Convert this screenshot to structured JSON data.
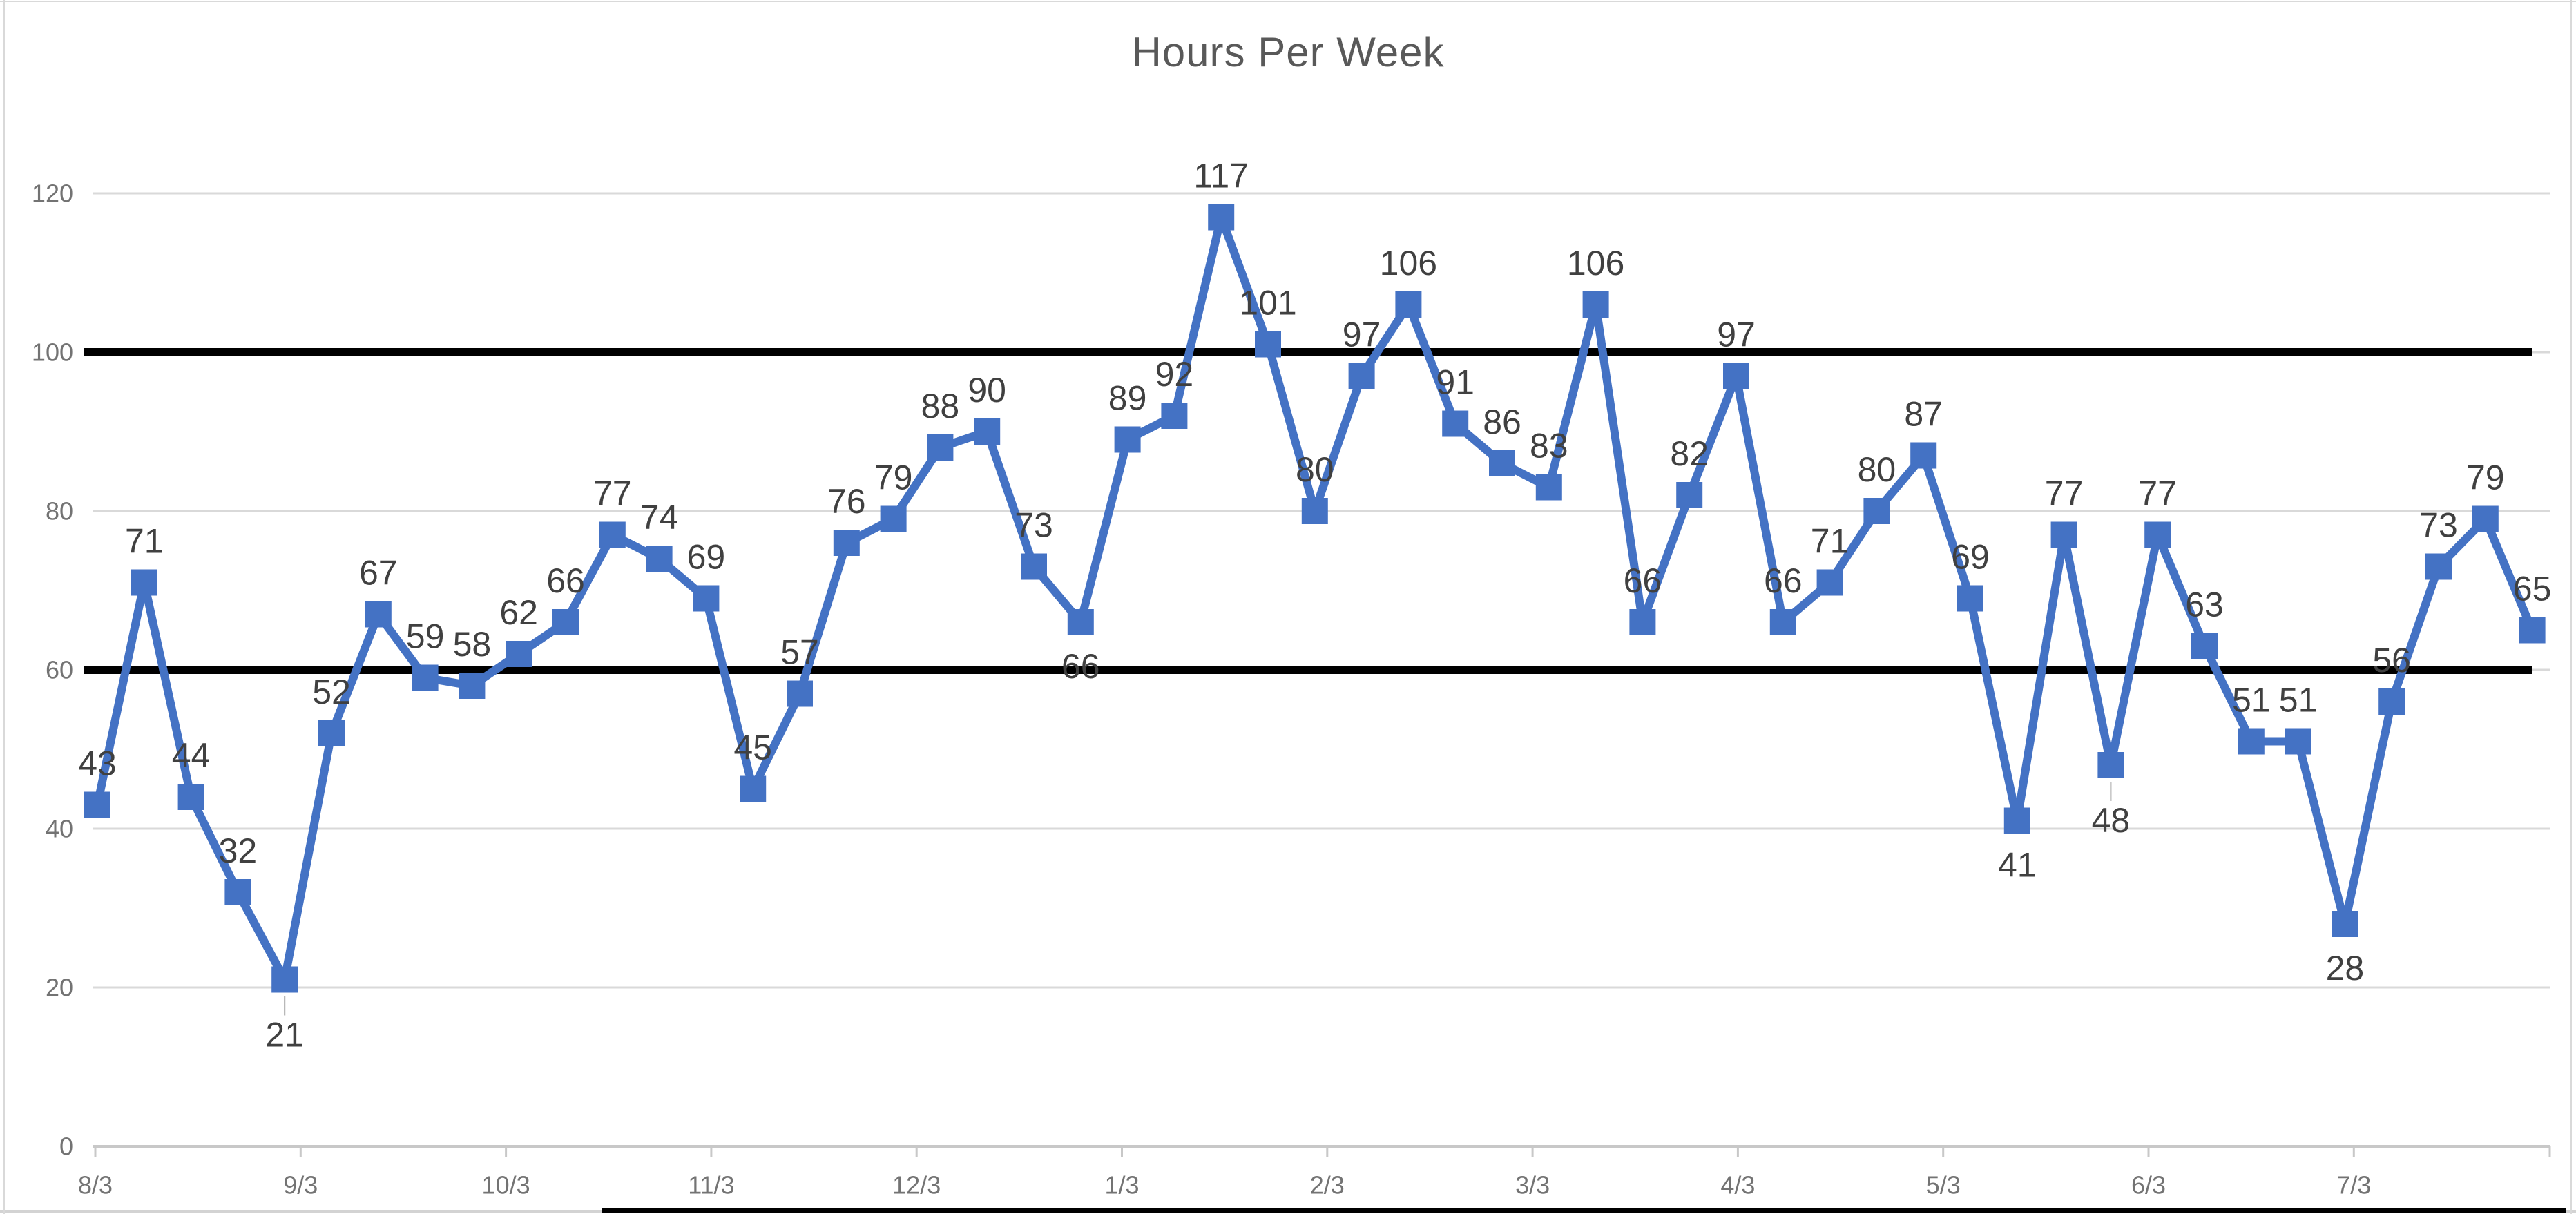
{
  "title": "Hours Per Week",
  "chart_data": {
    "type": "line",
    "title": "Hours Per Week",
    "series": [
      {
        "name": "Hours Per Week",
        "color": "#4472C4",
        "marker": "square",
        "values": [
          43,
          71,
          44,
          32,
          21,
          52,
          67,
          59,
          58,
          62,
          66,
          77,
          74,
          69,
          45,
          57,
          76,
          79,
          88,
          90,
          73,
          66,
          89,
          92,
          117,
          101,
          80,
          97,
          106,
          91,
          86,
          83,
          106,
          66,
          82,
          97,
          66,
          71,
          80,
          87,
          69,
          41,
          77,
          48,
          77,
          63,
          51,
          51,
          28,
          56,
          73,
          79,
          65
        ]
      }
    ],
    "x": "weekly points, first point at 8/3, 53 weeks",
    "x_tick_labels": [
      "8/3",
      "9/3",
      "10/3",
      "11/3",
      "12/3",
      "1/3",
      "2/3",
      "3/3",
      "4/3",
      "5/3",
      "6/3",
      "7/3"
    ],
    "y_ticks": [
      0,
      20,
      40,
      60,
      80,
      100,
      120
    ],
    "y_tick_labels": [
      "0",
      "20",
      "40",
      "60",
      "80",
      "100",
      "120"
    ],
    "ylim": [
      0,
      130
    ],
    "grid": "horizontal",
    "legend": "none",
    "data_labels": "all points",
    "reference_lines": [
      60,
      100
    ],
    "label_below_indices": [
      4,
      21,
      41,
      43,
      48
    ],
    "leader_line_indices": [
      4,
      43
    ]
  },
  "colors": {
    "series": "#4472C4",
    "title": "#595959",
    "axis_labels": "#737373",
    "data_labels": "#404040",
    "gridline": "#D9D9D9",
    "axis_line": "#C8C8C8",
    "reference_line": "#000000",
    "leader_line": "#A6A6A6",
    "bottom_bar_black": "#000000",
    "bottom_bar_gray": "#D3D3D3",
    "window_border": "#D9D9D9"
  }
}
